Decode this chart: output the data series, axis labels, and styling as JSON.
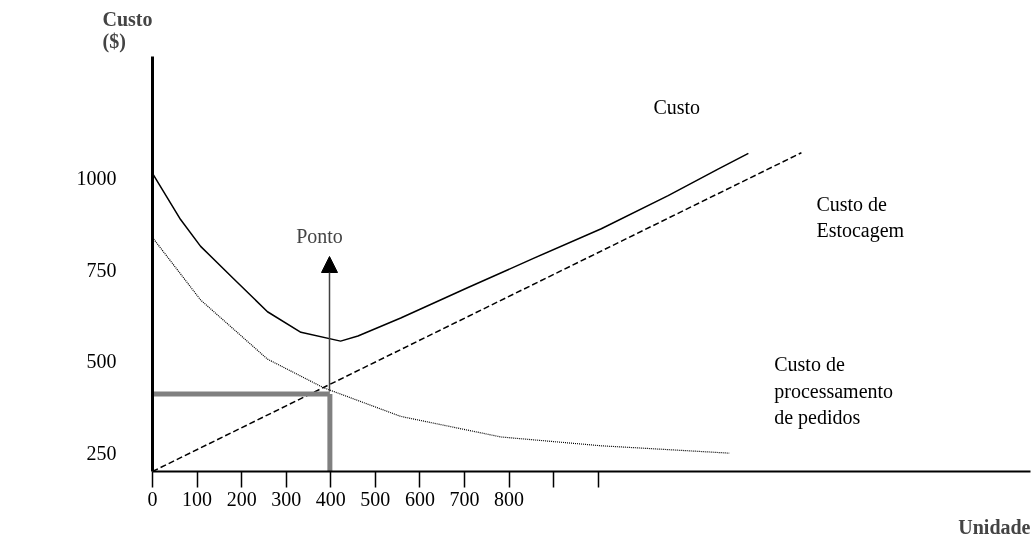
{
  "chart_data": {
    "type": "line",
    "xlabel": "Unidade",
    "ylabel": "Custo ($)",
    "xlim": [
      0,
      1970
    ],
    "ylim": [
      200,
      1330
    ],
    "xticks": [
      0,
      100,
      200,
      300,
      400,
      500,
      600,
      700,
      800,
      {
        "value": 900,
        "label": null
      },
      {
        "value": 1000,
        "label": null
      }
    ],
    "yticks": [
      250,
      500,
      750,
      1000
    ],
    "grid": false,
    "series": [
      {
        "name": "Custo",
        "color": "#000000",
        "line_style": "solid",
        "x": [
          0,
          63,
          108,
          182,
          258,
          333,
          422,
          461,
          557,
          708,
          856,
          1007,
          1157,
          1270,
          1337
        ],
        "values": [
          1012,
          886,
          813,
          725,
          635,
          579,
          555,
          569,
          618,
          701,
          781,
          861,
          951,
          1024,
          1066
        ]
      },
      {
        "name": "Custo de\nEstocagem",
        "color": "#000000",
        "line_style": "dashed",
        "x": [
          0,
          1456
        ],
        "values": [
          200,
          1068
        ]
      },
      {
        "name": "Custo de\nprocessamento\nde pedidos",
        "color": "#000000",
        "line_style": "dotted",
        "x": [
          0,
          108,
          258,
          384,
          557,
          782,
          1007,
          1294
        ],
        "values": [
          837,
          667,
          506,
          428,
          350,
          294,
          270,
          250
        ]
      },
      {
        "color": "#808080",
        "line_style": "solid",
        "x": [
          0,
          398
        ],
        "values": [
          411,
          411
        ]
      },
      {
        "color": "#808080",
        "line_style": "solid",
        "x": [
          398,
          398
        ],
        "values": [
          200,
          411
        ]
      }
    ],
    "annotations": [
      "Ponto"
    ]
  }
}
